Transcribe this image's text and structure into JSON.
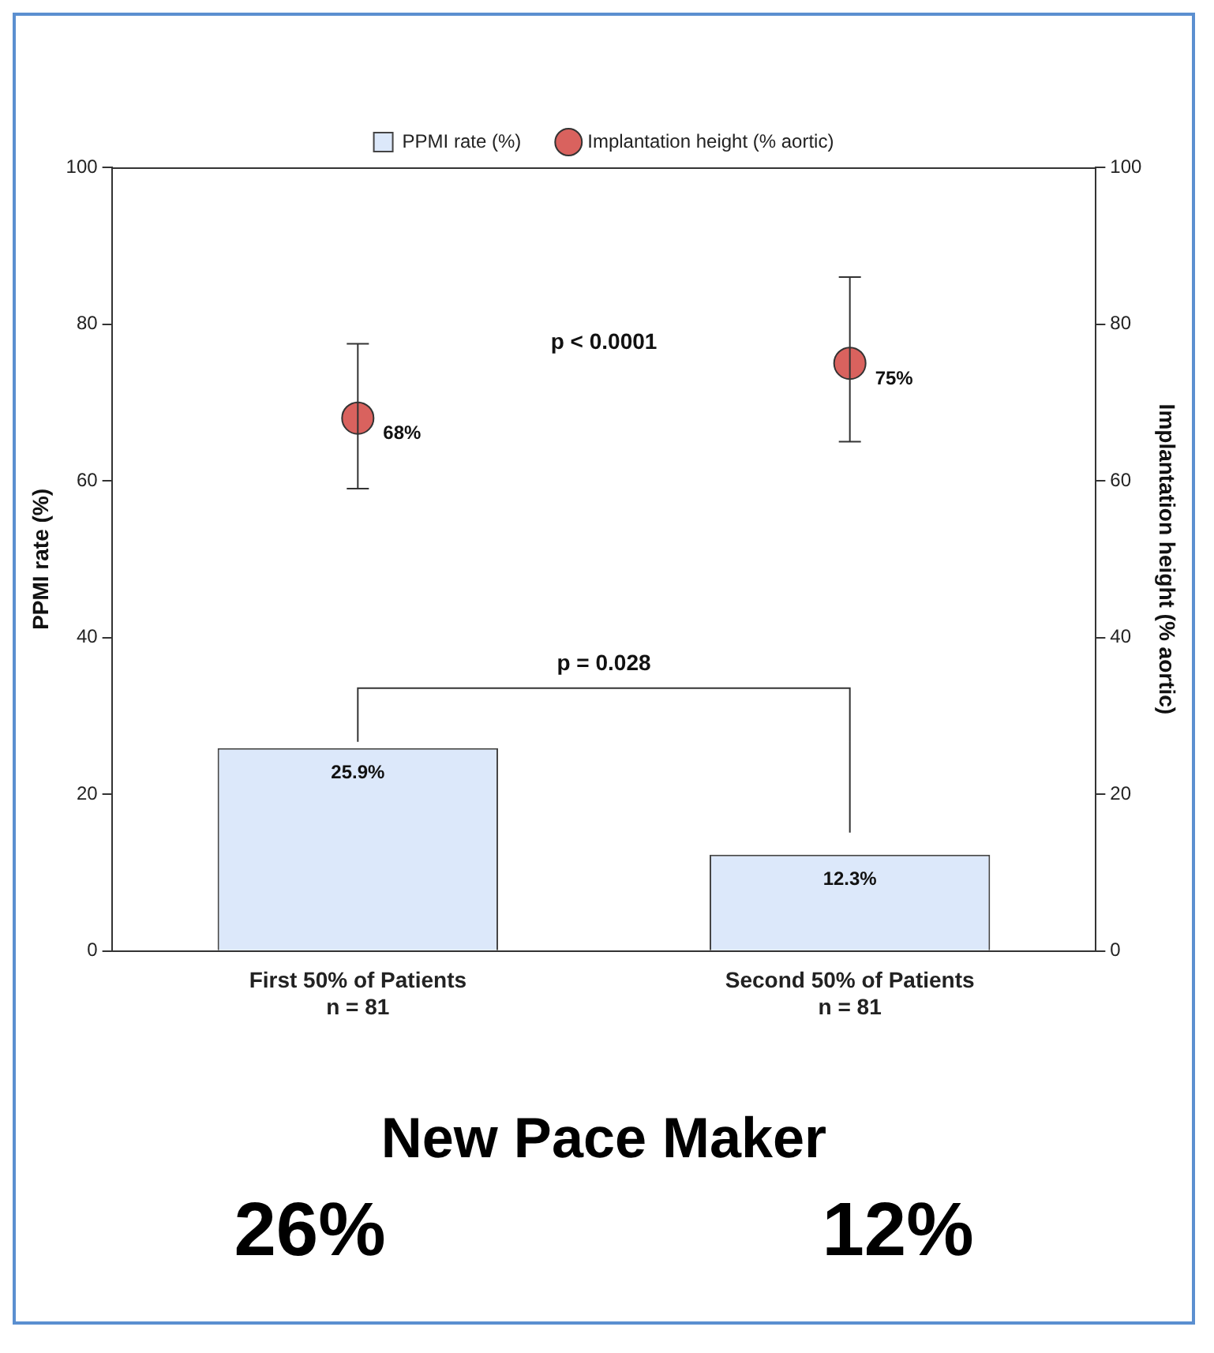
{
  "chart_data": {
    "type": "bar",
    "categories": [
      "First 50% of Patients\nn = 81",
      "Second 50% of Patients\nn = 81"
    ],
    "series": [
      {
        "name": "PPMI rate (%)",
        "color": "#dce8fa",
        "values": [
          25.9,
          12.3
        ],
        "value_labels": [
          "25.9%",
          "12.3%"
        ]
      },
      {
        "name": "Implantation height (% aortic)",
        "type": "scatter",
        "axis": "y2",
        "color": "#d9625e",
        "values": [
          68,
          75
        ],
        "errors": [
          [
            59,
            77.5
          ],
          [
            65,
            86
          ]
        ],
        "value_labels": [
          "68%",
          "75%"
        ]
      }
    ],
    "ylabel": "PPMI rate (%)",
    "y2label": "Implantation height (% aortic)",
    "ylim": [
      0,
      100
    ],
    "yticks": [
      0,
      20,
      40,
      60,
      80,
      100
    ],
    "y2lim": [
      0,
      100
    ],
    "y2ticks": [
      0,
      20,
      40,
      60,
      80,
      100
    ],
    "legend": "top",
    "marker": "circle",
    "annotations": [
      "p < 0.0001",
      "p = 0.028",
      "New Pace Maker",
      "26%",
      "12%"
    ]
  }
}
